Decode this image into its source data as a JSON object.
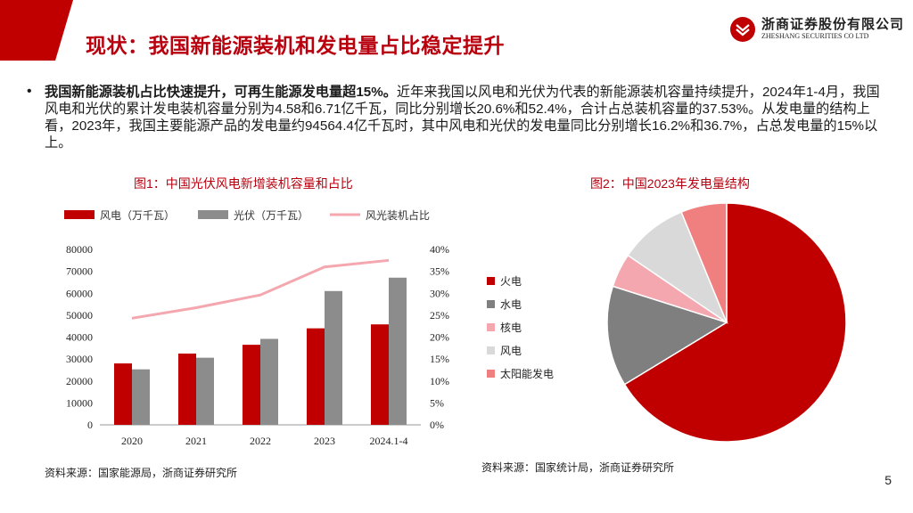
{
  "header": {
    "title": "现状：我国新能源装机和发电量占比稳定提升",
    "logo_cn": "浙商证券股份有限公司",
    "logo_en": "ZHESHANG SECURITIES CO LTD"
  },
  "bullet": {
    "marker": "•",
    "bold": "我国新能源装机占比快速提升，可再生能源发电量超15%。",
    "text": "近年来我国以风电和光伏为代表的新能源装机容量持续提升，2024年1-4月，我国风电和光伏的累计发电装机容量分别为4.58和6.71亿千瓦，同比分别增长20.6%和52.4%，合计占总装机容量的37.53%。从发电量的结构上看，2023年，我国主要能源产品的发电量约94564.4亿千瓦时，其中风电和光伏的发电量同比分别增长16.2%和36.7%，占总发电量的15%以上。"
  },
  "figure1": {
    "title": "图1：中国光伏风电新增装机容量和占比",
    "source": "资料来源：国家能源局，浙商证券研究所"
  },
  "figure2": {
    "title": "图2：中国2023年发电量结构",
    "source": "资料来源：国家统计局，浙商证券研究所"
  },
  "page_number": "5",
  "colors": {
    "brand_red": "#b8000e",
    "wind": "#c00000",
    "solar": "#8c8c8c",
    "share": "#f4a7ae",
    "thermal": "#c00000",
    "hydro": "#7f7f7f",
    "nuclear": "#f4a7ae",
    "wind_pie": "#d9d9d9",
    "solar_pie": "#f08080"
  },
  "chart_data": [
    {
      "type": "bar",
      "title": "中国光伏风电新增装机容量和占比",
      "categories": [
        "2020",
        "2021",
        "2022",
        "2023",
        "2024.1-4"
      ],
      "series": [
        {
          "name": "风电（万千瓦）",
          "kind": "bar",
          "axis": "left",
          "values": [
            28000,
            32500,
            36500,
            44000,
            45800
          ]
        },
        {
          "name": "光伏（万千瓦）",
          "kind": "bar",
          "axis": "left",
          "values": [
            25300,
            30600,
            39200,
            61000,
            67100
          ]
        },
        {
          "name": "风光装机占比",
          "kind": "line",
          "axis": "right",
          "values": [
            24.3,
            26.7,
            29.6,
            36.0,
            37.5
          ]
        }
      ],
      "y_left": {
        "min": 0,
        "max": 80000,
        "ticks": [
          "0",
          "10000",
          "20000",
          "30000",
          "40000",
          "50000",
          "60000",
          "70000",
          "80000"
        ]
      },
      "y_right": {
        "min": 0,
        "max": 40,
        "ticks": [
          "0%",
          "5%",
          "10%",
          "15%",
          "20%",
          "25%",
          "30%",
          "35%",
          "40%"
        ]
      },
      "legend_position": "top"
    },
    {
      "type": "pie",
      "title": "中国2023年发电量结构",
      "labels": [
        "火电",
        "水电",
        "核电",
        "风电",
        "太阳能发电"
      ],
      "values": [
        66.3,
        13.6,
        4.6,
        9.3,
        6.2
      ],
      "legend_position": "left"
    }
  ]
}
